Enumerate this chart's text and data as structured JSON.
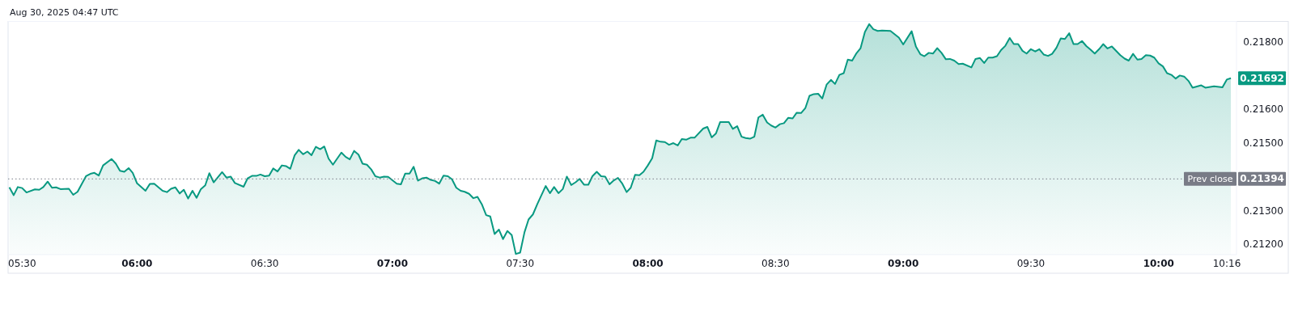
{
  "chart_data": {
    "type": "area",
    "annotations": [
      "Aug 30, 2025 04:47 UTC",
      {
        "text": "0.21692",
        "x": 10.283,
        "y": 0.21692
      },
      {
        "text": "0.21394",
        "x": 10.283,
        "y": 0.21394
      }
    ],
    "x": [
      5.5,
      5.517,
      5.533,
      5.55,
      5.567,
      5.6,
      5.617,
      5.633,
      5.65,
      5.667,
      5.683,
      5.7,
      5.733,
      5.75,
      5.767,
      5.8,
      5.817,
      5.833,
      5.85,
      5.867,
      5.9,
      5.917,
      5.933,
      5.95,
      5.967,
      5.983,
      6,
      6.033,
      6.05,
      6.067,
      6.1,
      6.117,
      6.133,
      6.15,
      6.167,
      6.183,
      6.2,
      6.217,
      6.233,
      6.25,
      6.267,
      6.283,
      6.3,
      6.333,
      6.35,
      6.367,
      6.383,
      6.417,
      6.433,
      6.45,
      6.467,
      6.483,
      6.5,
      6.517,
      6.533,
      6.55,
      6.567,
      6.583,
      6.6,
      6.617,
      6.633,
      6.65,
      6.667,
      6.683,
      6.7,
      6.717,
      6.733,
      6.75,
      6.767,
      6.8,
      6.817,
      6.833,
      6.85,
      6.867,
      6.883,
      6.9,
      6.917,
      6.933,
      6.95,
      6.967,
      6.983,
      7.017,
      7.033,
      7.05,
      7.067,
      7.083,
      7.1,
      7.117,
      7.133,
      7.15,
      7.167,
      7.183,
      7.2,
      7.217,
      7.233,
      7.25,
      7.267,
      7.283,
      7.3,
      7.317,
      7.333,
      7.35,
      7.367,
      7.383,
      7.4,
      7.417,
      7.433,
      7.45,
      7.467,
      7.483,
      7.5,
      7.517,
      7.533,
      7.55,
      7.567,
      7.6,
      7.617,
      7.633,
      7.65,
      7.667,
      7.683,
      7.7,
      7.717,
      7.733,
      7.75,
      7.767,
      7.783,
      7.8,
      7.817,
      7.833,
      7.85,
      7.867,
      7.883,
      7.9,
      7.917,
      7.933,
      7.95,
      7.967,
      7.983,
      8,
      8.017,
      8.033,
      8.05,
      8.067,
      8.083,
      8.1,
      8.117,
      8.133,
      8.15,
      8.167,
      8.183,
      8.217,
      8.233,
      8.25,
      8.267,
      8.283,
      8.317,
      8.333,
      8.35,
      8.367,
      8.383,
      8.4,
      8.417,
      8.433,
      8.45,
      8.467,
      8.483,
      8.5,
      8.517,
      8.533,
      8.55,
      8.567,
      8.583,
      8.6,
      8.617,
      8.633,
      8.65,
      8.667,
      8.683,
      8.7,
      8.717,
      8.733,
      8.75,
      8.767,
      8.783,
      8.8,
      8.817,
      8.833,
      8.85,
      8.867,
      8.883,
      8.9,
      8.917,
      8.95,
      8.983,
      9,
      9.033,
      9.05,
      9.067,
      9.083,
      9.1,
      9.117,
      9.133,
      9.15,
      9.167,
      9.183,
      9.2,
      9.217,
      9.233,
      9.267,
      9.283,
      9.3,
      9.317,
      9.333,
      9.35,
      9.367,
      9.383,
      9.4,
      9.417,
      9.433,
      9.45,
      9.467,
      9.483,
      9.5,
      9.517,
      9.533,
      9.55,
      9.567,
      9.583,
      9.6,
      9.617,
      9.633,
      9.65,
      9.667,
      9.683,
      9.7,
      9.717,
      9.733,
      9.75,
      9.767,
      9.783,
      9.8,
      9.817,
      9.85,
      9.867,
      9.883,
      9.9,
      9.917,
      9.933,
      9.95,
      9.967,
      9.983,
      10,
      10.017,
      10.033,
      10.05,
      10.067,
      10.083,
      10.1,
      10.117,
      10.133,
      10.167,
      10.183,
      10.217,
      10.25,
      10.267,
      10.283
    ],
    "series": [
      {
        "color": "#089981",
        "values": [
          0.21369,
          0.21346,
          0.2137,
          0.21367,
          0.21354,
          0.21363,
          0.21362,
          0.2137,
          0.21386,
          0.21368,
          0.21369,
          0.21364,
          0.21365,
          0.21347,
          0.21356,
          0.21402,
          0.21409,
          0.21412,
          0.21404,
          0.21434,
          0.21453,
          0.21439,
          0.21418,
          0.21415,
          0.21426,
          0.21412,
          0.21381,
          0.21359,
          0.21379,
          0.2138,
          0.21359,
          0.21355,
          0.21365,
          0.21369,
          0.21351,
          0.21362,
          0.21336,
          0.21359,
          0.21338,
          0.21364,
          0.21375,
          0.21411,
          0.21384,
          0.21414,
          0.21398,
          0.21401,
          0.21382,
          0.21371,
          0.21396,
          0.21403,
          0.21403,
          0.21407,
          0.21402,
          0.21404,
          0.21425,
          0.21416,
          0.21434,
          0.21432,
          0.21424,
          0.21464,
          0.2148,
          0.21467,
          0.21475,
          0.21464,
          0.21489,
          0.21482,
          0.2149,
          0.21454,
          0.21436,
          0.21472,
          0.21459,
          0.21452,
          0.21477,
          0.21466,
          0.21439,
          0.21436,
          0.21422,
          0.21402,
          0.21398,
          0.21401,
          0.214,
          0.2138,
          0.21378,
          0.2141,
          0.2141,
          0.2143,
          0.21389,
          0.21396,
          0.21398,
          0.21391,
          0.21388,
          0.2138,
          0.21404,
          0.21402,
          0.21393,
          0.21368,
          0.21359,
          0.21356,
          0.2135,
          0.21337,
          0.21341,
          0.21319,
          0.21287,
          0.21283,
          0.21231,
          0.21244,
          0.21216,
          0.2124,
          0.21228,
          0.21172,
          0.21176,
          0.21236,
          0.21274,
          0.21289,
          0.21319,
          0.21373,
          0.21352,
          0.2137,
          0.21352,
          0.21364,
          0.21401,
          0.21376,
          0.21384,
          0.21394,
          0.21377,
          0.21377,
          0.21402,
          0.21415,
          0.21402,
          0.21401,
          0.21378,
          0.2139,
          0.21397,
          0.2138,
          0.21355,
          0.21368,
          0.21406,
          0.21405,
          0.21415,
          0.21434,
          0.21455,
          0.21508,
          0.21504,
          0.21503,
          0.21495,
          0.215,
          0.21493,
          0.21512,
          0.2151,
          0.21516,
          0.21516,
          0.21543,
          0.21548,
          0.21517,
          0.21529,
          0.21562,
          0.21562,
          0.21542,
          0.2155,
          0.21519,
          0.21515,
          0.21513,
          0.21519,
          0.21576,
          0.21584,
          0.21561,
          0.21552,
          0.21546,
          0.21556,
          0.21559,
          0.21575,
          0.21573,
          0.2159,
          0.21589,
          0.21604,
          0.2164,
          0.21645,
          0.21646,
          0.21632,
          0.21673,
          0.21687,
          0.21675,
          0.21702,
          0.21707,
          0.21747,
          0.21744,
          0.21766,
          0.21781,
          0.21829,
          0.21852,
          0.21837,
          0.21832,
          0.21833,
          0.21832,
          0.21812,
          0.21792,
          0.21831,
          0.21785,
          0.21763,
          0.21757,
          0.21767,
          0.21765,
          0.21781,
          0.21767,
          0.21748,
          0.21749,
          0.21744,
          0.21734,
          0.21735,
          0.21724,
          0.21749,
          0.21752,
          0.21737,
          0.21753,
          0.21753,
          0.21757,
          0.21775,
          0.21788,
          0.21811,
          0.21793,
          0.21793,
          0.21773,
          0.21765,
          0.21778,
          0.21771,
          0.21778,
          0.21762,
          0.21758,
          0.21764,
          0.21782,
          0.2181,
          0.21808,
          0.21825,
          0.21793,
          0.21793,
          0.21802,
          0.21787,
          0.21777,
          0.21765,
          0.21778,
          0.21793,
          0.2178,
          0.21786,
          0.2176,
          0.2175,
          0.21744,
          0.21764,
          0.21747,
          0.21749,
          0.2176,
          0.21759,
          0.21753,
          0.21736,
          0.21727,
          0.21707,
          0.21702,
          0.21691,
          0.217,
          0.21697,
          0.21684,
          0.21664,
          0.21671,
          0.21664,
          0.21668,
          0.21665,
          0.21688,
          0.21692
        ]
      }
    ],
    "xlim": [
      5.495,
      10.305
    ],
    "xticks": [
      {
        "value": 5.5,
        "label": "05:30"
      },
      {
        "value": 6,
        "label": "06:00"
      },
      {
        "value": 6.5,
        "label": "06:30"
      },
      {
        "value": 7,
        "label": "07:00"
      },
      {
        "value": 7.5,
        "label": "07:30"
      },
      {
        "value": 8,
        "label": "08:00"
      },
      {
        "value": 8.5,
        "label": "08:30"
      },
      {
        "value": 9,
        "label": "09:00"
      },
      {
        "value": 9.5,
        "label": "09:30"
      },
      {
        "value": 10,
        "label": "10:00"
      },
      {
        "value": 10.267,
        "label": "10:16"
      }
    ],
    "ylim": [
      0.2117,
      0.2186
    ],
    "yticks": [
      {
        "value": 0.212,
        "label": "0.21200"
      },
      {
        "value": 0.213,
        "label": "0.21300"
      },
      {
        "value": 0.215,
        "label": "0.21500"
      },
      {
        "value": 0.216,
        "label": "0.21600"
      },
      {
        "value": 0.218,
        "label": "0.21800"
      }
    ],
    "ref_lines": [
      {
        "axis": "y",
        "value": 0.21394,
        "label": "Prev close",
        "color": "#787b86",
        "line_style": "dotted"
      }
    ],
    "grid": false
  }
}
